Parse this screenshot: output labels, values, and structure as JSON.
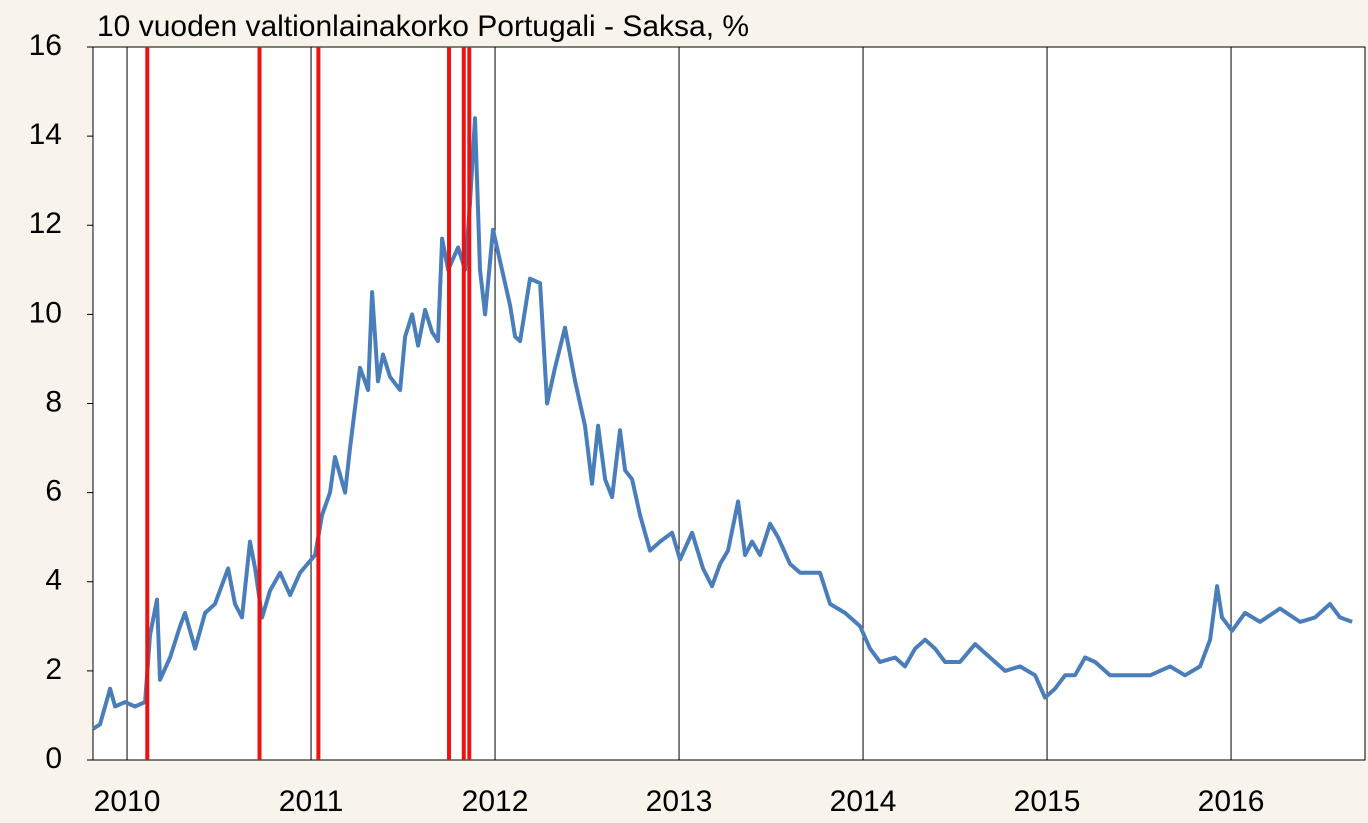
{
  "chart_data": {
    "type": "line",
    "title": "10 vuoden valtionlainakorko Portugali - Saksa, %",
    "x": [
      2009.815,
      2009.853,
      2009.908,
      2009.935,
      2009.989,
      2010.043,
      2010.098,
      2010.125,
      2010.163,
      2010.179,
      2010.234,
      2010.288,
      2010.315,
      2010.37,
      2010.424,
      2010.478,
      2010.549,
      2010.587,
      2010.625,
      2010.668,
      2010.696,
      2010.734,
      2010.777,
      2010.832,
      2010.886,
      2010.94,
      2011.022,
      2011.06,
      2011.103,
      2011.13,
      2011.185,
      2011.212,
      2011.266,
      2011.31,
      2011.332,
      2011.364,
      2011.391,
      2011.429,
      2011.484,
      2011.511,
      2011.549,
      2011.582,
      2011.62,
      2011.658,
      2011.69,
      2011.712,
      2011.745,
      2011.799,
      2011.837,
      2011.864,
      2011.891,
      2011.918,
      2011.946,
      2011.989,
      2012.027,
      2012.082,
      2012.109,
      2012.136,
      2012.19,
      2012.245,
      2012.283,
      2012.326,
      2012.38,
      2012.435,
      2012.489,
      2012.527,
      2012.56,
      2012.598,
      2012.636,
      2012.679,
      2012.707,
      2012.745,
      2012.788,
      2012.842,
      2012.897,
      2012.962,
      2013.005,
      2013.071,
      2013.13,
      2013.179,
      2013.223,
      2013.266,
      2013.321,
      2013.359,
      2013.397,
      2013.44,
      2013.495,
      2013.538,
      2013.603,
      2013.658,
      2013.766,
      2013.821,
      2013.902,
      2013.984,
      2014.038,
      2014.092,
      2014.174,
      2014.228,
      2014.283,
      2014.337,
      2014.391,
      2014.446,
      2014.527,
      2014.609,
      2014.69,
      2014.772,
      2014.853,
      2014.935,
      2014.989,
      2015.043,
      2015.098,
      2015.152,
      2015.207,
      2015.261,
      2015.342,
      2015.451,
      2015.56,
      2015.668,
      2015.75,
      2015.832,
      2015.886,
      2015.924,
      2015.951,
      2016.005,
      2016.076,
      2016.158,
      2016.266,
      2016.375,
      2016.457,
      2016.538,
      2016.592,
      2016.658
    ],
    "series": [
      {
        "color": "#4a7ebb",
        "values": [
          0.7,
          0.8,
          1.6,
          1.2,
          1.3,
          1.2,
          1.3,
          2.8,
          3.6,
          1.8,
          2.3,
          3.0,
          3.3,
          2.5,
          3.3,
          3.5,
          4.3,
          3.5,
          3.2,
          4.9,
          4.3,
          3.2,
          3.8,
          4.2,
          3.7,
          4.2,
          4.6,
          5.5,
          6.0,
          6.8,
          6.0,
          7.0,
          8.8,
          8.3,
          10.5,
          8.5,
          9.1,
          8.6,
          8.3,
          9.5,
          10.0,
          9.3,
          10.1,
          9.6,
          9.4,
          11.7,
          11.0,
          11.5,
          11.0,
          12.5,
          14.4,
          11.0,
          10.0,
          11.9,
          11.2,
          10.2,
          9.5,
          9.4,
          10.8,
          10.7,
          8.0,
          8.8,
          9.7,
          8.5,
          7.5,
          6.2,
          7.5,
          6.3,
          5.9,
          7.4,
          6.5,
          6.3,
          5.5,
          4.7,
          4.9,
          5.1,
          4.5,
          5.1,
          4.3,
          3.9,
          4.4,
          4.7,
          5.8,
          4.6,
          4.9,
          4.6,
          5.3,
          5.0,
          4.4,
          4.2,
          4.2,
          3.5,
          3.3,
          3.0,
          2.5,
          2.2,
          2.3,
          2.1,
          2.5,
          2.7,
          2.5,
          2.2,
          2.2,
          2.6,
          2.3,
          2.0,
          2.1,
          1.9,
          1.4,
          1.6,
          1.9,
          1.9,
          2.3,
          2.2,
          1.9,
          1.9,
          1.9,
          2.1,
          1.9,
          2.1,
          2.7,
          3.9,
          3.2,
          2.9,
          3.3,
          3.1,
          3.4,
          3.1,
          3.2,
          3.5,
          3.2,
          3.1
        ]
      }
    ],
    "vlines": {
      "color": "#ee1111",
      "values": [
        2010.11,
        2010.72,
        2011.04,
        2011.75,
        2011.83,
        2011.86
      ]
    },
    "xlim": [
      2009.815,
      2016.728
    ],
    "xticks": [
      2010,
      2011,
      2012,
      2013,
      2014,
      2015,
      2016
    ],
    "ylim": [
      0,
      16
    ],
    "yticks": [
      0,
      2,
      4,
      6,
      8,
      10,
      12,
      14,
      16
    ],
    "grid": "x"
  }
}
